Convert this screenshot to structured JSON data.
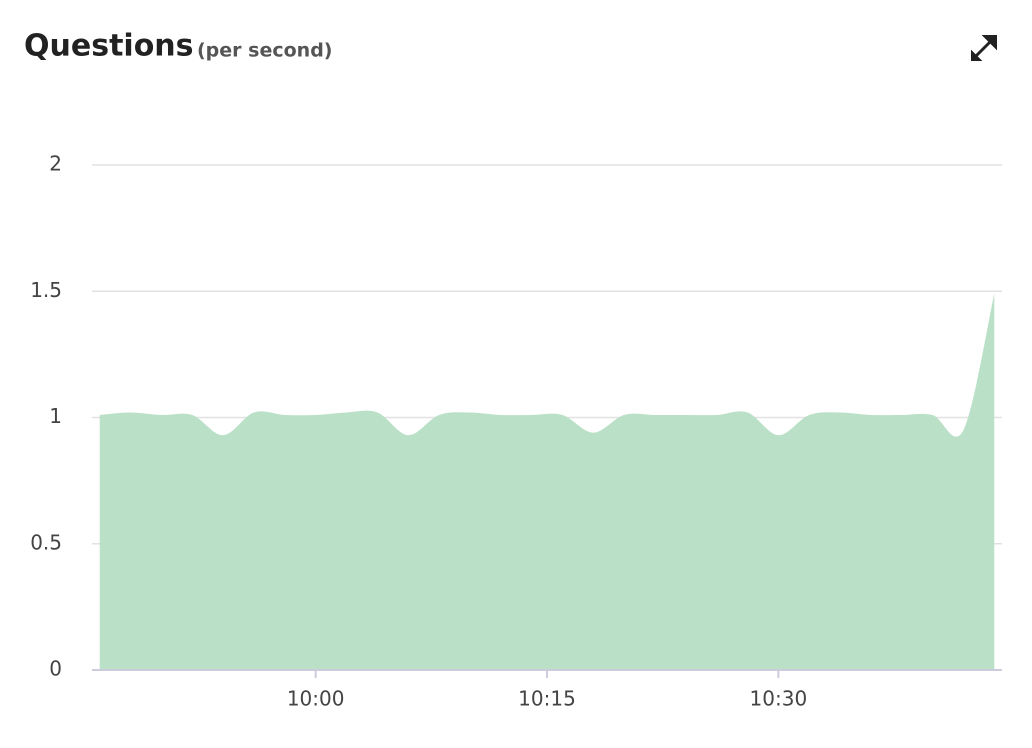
{
  "chart_data": {
    "type": "area",
    "title": "Questions",
    "subtitle": "(per second)",
    "x": [
      "09:46",
      "09:48",
      "09:50",
      "09:52",
      "09:54",
      "09:56",
      "09:58",
      "10:00",
      "10:02",
      "10:04",
      "10:06",
      "10:08",
      "10:10",
      "10:12",
      "10:14",
      "10:16",
      "10:18",
      "10:20",
      "10:22",
      "10:24",
      "10:26",
      "10:28",
      "10:30",
      "10:32",
      "10:34",
      "10:36",
      "10:38",
      "10:40",
      "10:42",
      "10:44"
    ],
    "series": [
      {
        "name": "Questions",
        "color": "#b7dec5",
        "values": [
          1.01,
          1.02,
          1.01,
          1.01,
          0.93,
          1.02,
          1.01,
          1.01,
          1.02,
          1.02,
          0.93,
          1.01,
          1.02,
          1.01,
          1.01,
          1.01,
          0.94,
          1.01,
          1.01,
          1.01,
          1.01,
          1.02,
          0.93,
          1.01,
          1.02,
          1.01,
          1.01,
          1.01,
          0.95,
          1.49
        ]
      }
    ],
    "xlim": [
      "09:45:30",
      "10:44:30"
    ],
    "xticks": [
      "10:00",
      "10:15",
      "10:30"
    ],
    "ylim": [
      0,
      2
    ],
    "yticks": [
      0,
      0.5,
      1,
      1.5,
      2
    ],
    "grid": true
  }
}
